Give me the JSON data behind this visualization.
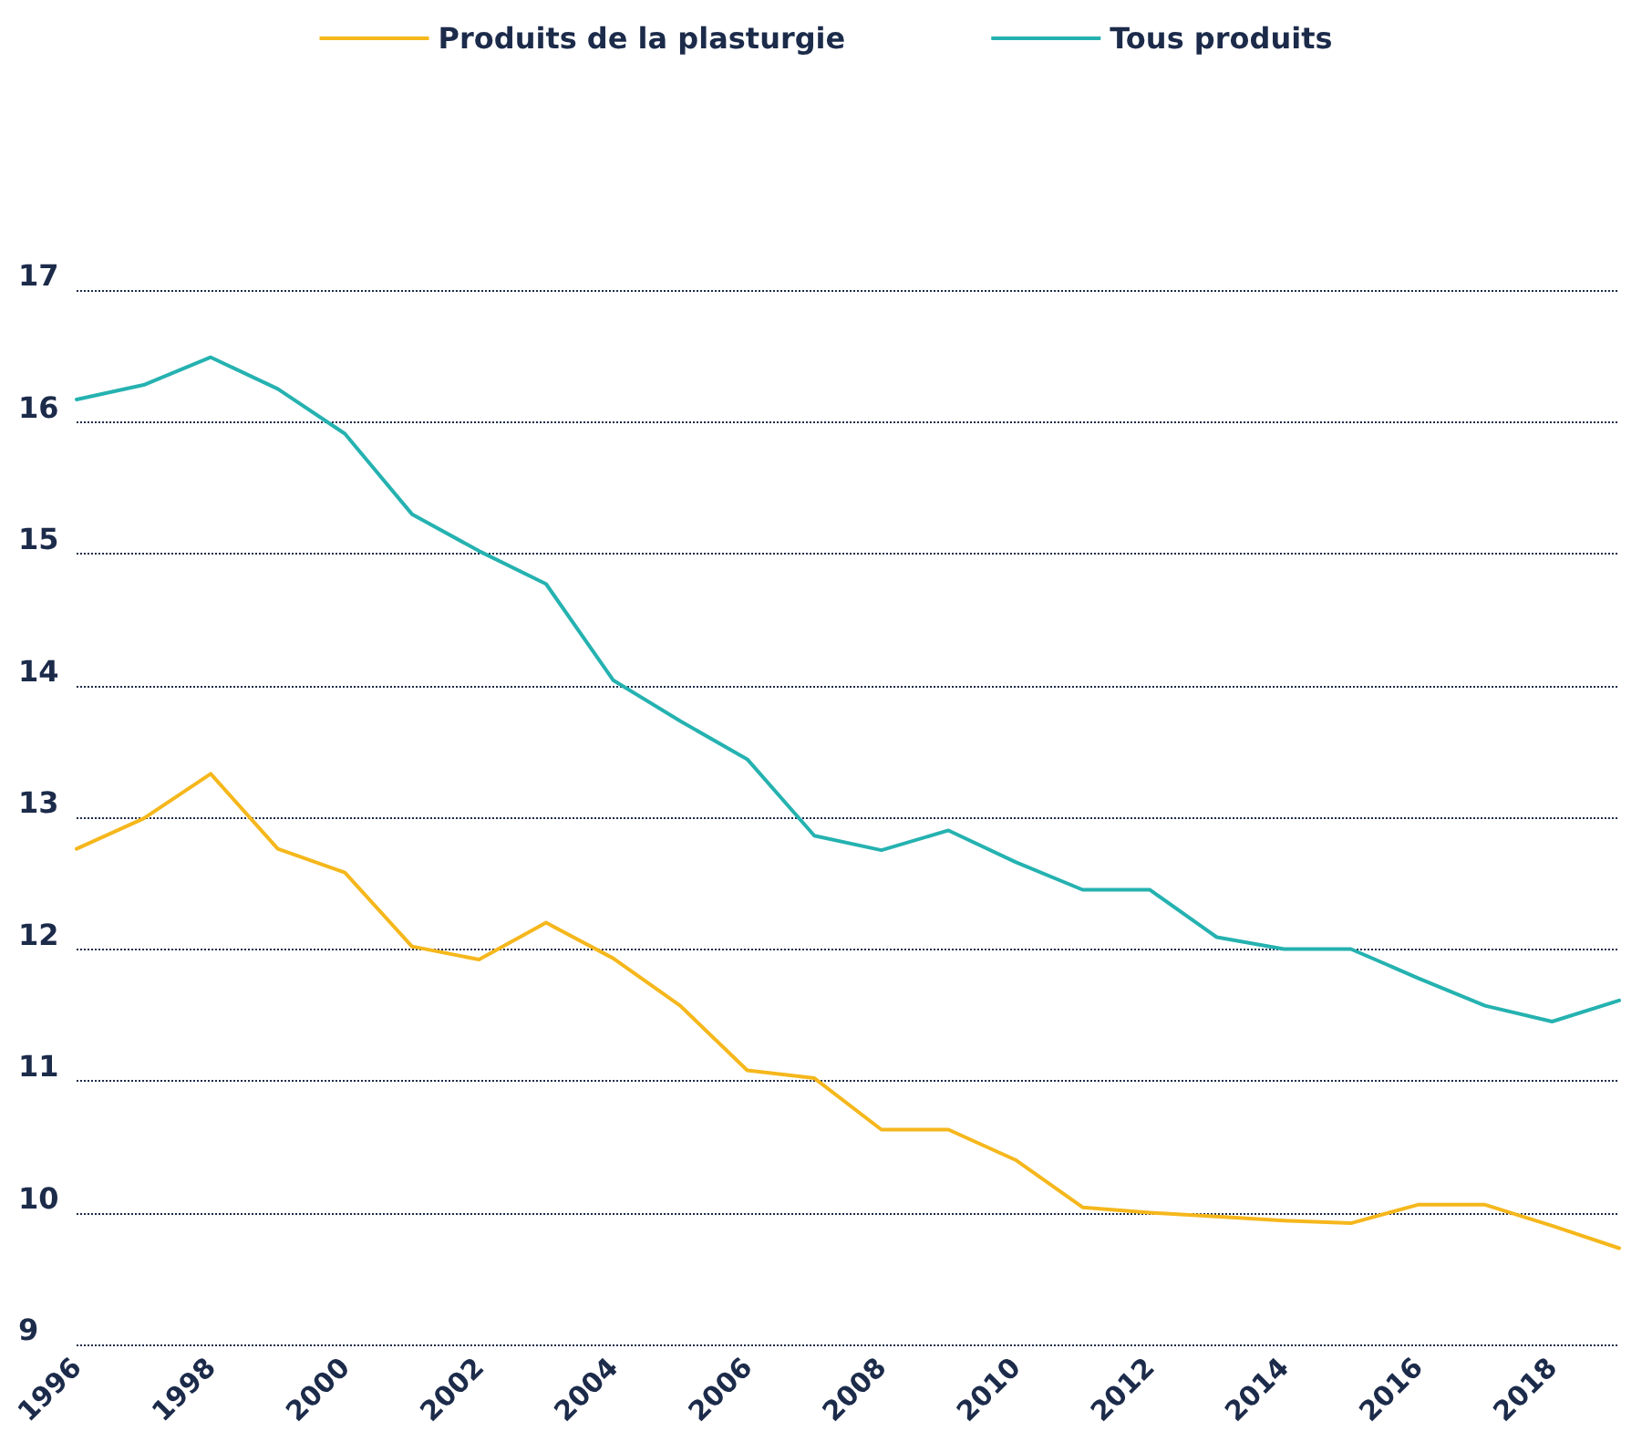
{
  "chart_data": {
    "type": "line",
    "x": [
      1996,
      1997,
      1998,
      1999,
      2000,
      2001,
      2002,
      2003,
      2004,
      2005,
      2006,
      2007,
      2008,
      2009,
      2010,
      2011,
      2012,
      2013,
      2014,
      2015,
      2016,
      2017,
      2018,
      2019
    ],
    "series": [
      {
        "name": "Produits de la plasturgie",
        "color": "#f5b71c",
        "values": [
          12.76,
          12.99,
          13.33,
          12.76,
          12.58,
          12.02,
          11.92,
          12.2,
          11.93,
          11.57,
          11.08,
          11.02,
          10.63,
          10.63,
          10.4,
          10.04,
          10.0,
          9.97,
          9.94,
          9.92,
          10.06,
          10.06,
          9.9,
          9.73
        ]
      },
      {
        "name": "Tous produits",
        "color": "#25b2b0",
        "values": [
          16.17,
          16.28,
          16.49,
          16.25,
          15.91,
          15.3,
          15.02,
          14.77,
          14.04,
          13.73,
          13.44,
          12.86,
          12.75,
          12.9,
          12.66,
          12.45,
          12.45,
          12.09,
          12.0,
          12.0,
          11.78,
          11.57,
          11.45,
          11.61
        ]
      }
    ],
    "xlim": [
      1996,
      2019
    ],
    "xticks": [
      1996,
      1998,
      2000,
      2002,
      2004,
      2006,
      2008,
      2010,
      2012,
      2014,
      2016,
      2018
    ],
    "ylim": [
      9,
      17
    ],
    "yticks": [
      9,
      10,
      11,
      12,
      13,
      14,
      15,
      16,
      17
    ],
    "grid": "y",
    "legend": "top",
    "marker": "none",
    "line_style": "solid"
  }
}
